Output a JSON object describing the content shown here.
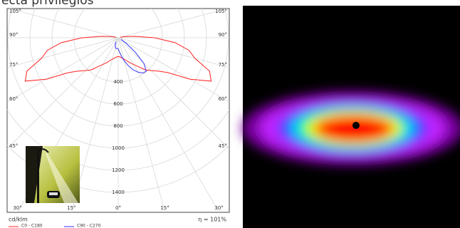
{
  "chart_data": {
    "type": "polar",
    "title": "ecta privilegios",
    "unit_label": "cd/klm",
    "efficiency_label": "η = 101%",
    "rlim": [
      0,
      1400
    ],
    "rticks": [
      400,
      600,
      800,
      1000,
      1200,
      1400
    ],
    "angleticks": [
      {
        "value": -105,
        "label": "105°"
      },
      {
        "value": -90,
        "label": "90°"
      },
      {
        "value": -75,
        "label": "75°"
      },
      {
        "value": -60,
        "label": "60°"
      },
      {
        "value": -45,
        "label": "45°"
      },
      {
        "value": -30,
        "label": "30°"
      },
      {
        "value": -15,
        "label": "15°"
      },
      {
        "value": 0,
        "label": "0°"
      },
      {
        "value": 15,
        "label": "15°"
      },
      {
        "value": 30,
        "label": "30°"
      },
      {
        "value": 45,
        "label": "45°"
      },
      {
        "value": 60,
        "label": "60°"
      },
      {
        "value": 75,
        "label": "75°"
      },
      {
        "value": 90,
        "label": "90°"
      },
      {
        "value": 105,
        "label": "105°"
      }
    ],
    "grid": true,
    "series": [
      {
        "name": "C0 - C180",
        "color": "#ff2020",
        "angles": [
          -105,
          -100,
          -95,
          -90,
          -85,
          -80,
          -75,
          -70,
          -65,
          -60,
          -55,
          -50,
          -45,
          -40,
          -35,
          -30,
          -25,
          -20,
          -15,
          -10,
          -5,
          0,
          5,
          10,
          15,
          20,
          25,
          30,
          35,
          40,
          45,
          50,
          55,
          60,
          65,
          70,
          75,
          80,
          85,
          90,
          95,
          100,
          105
        ],
        "values": [
          20,
          60,
          150,
          330,
          520,
          650,
          720,
          880,
          930,
          750,
          550,
          470,
          420,
          380,
          320,
          280,
          250,
          220,
          200,
          185,
          175,
          170,
          175,
          185,
          200,
          220,
          250,
          280,
          320,
          380,
          420,
          470,
          550,
          750,
          930,
          880,
          720,
          650,
          520,
          330,
          150,
          60,
          20
        ]
      },
      {
        "name": "C90 - C270",
        "color": "#3333ff",
        "angles": [
          -30,
          -25,
          -20,
          -15,
          -10,
          -5,
          0,
          5,
          10,
          15,
          20,
          25,
          30,
          35,
          40,
          45,
          50,
          55,
          60
        ],
        "values": [
          40,
          60,
          80,
          95,
          100,
          95,
          100,
          130,
          170,
          220,
          270,
          320,
          360,
          390,
          395,
          330,
          200,
          90,
          30
        ]
      }
    ]
  }
}
